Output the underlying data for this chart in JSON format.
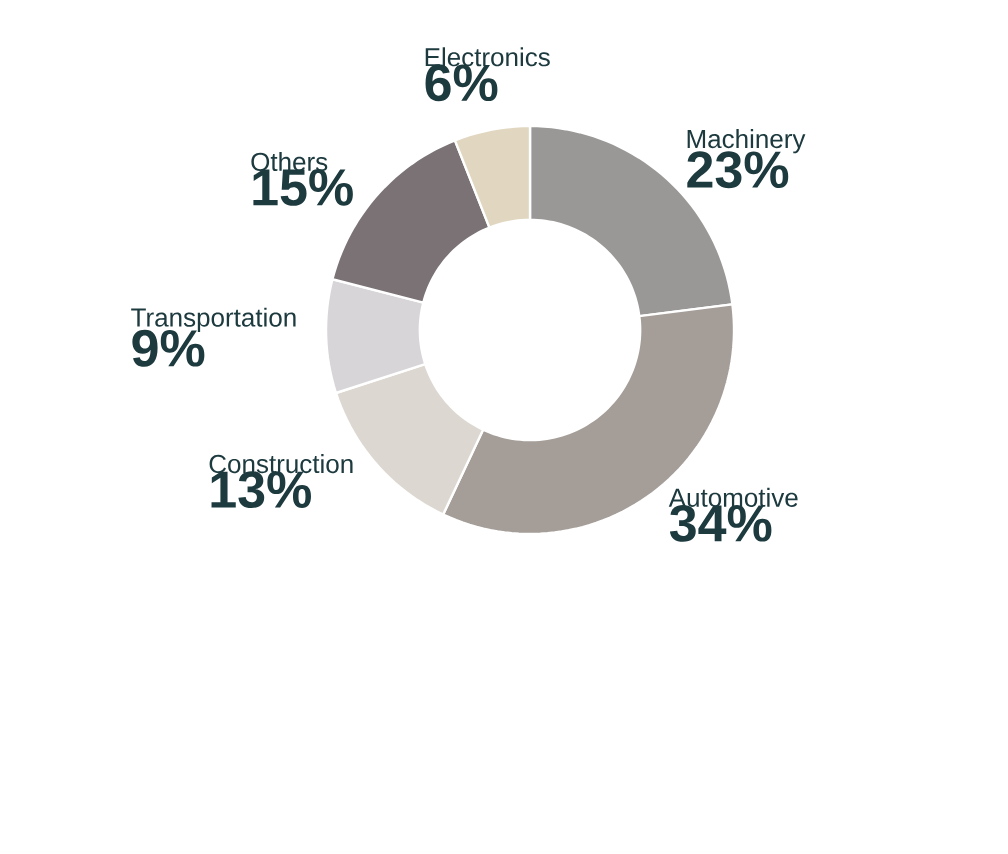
{
  "chart_data": {
    "type": "donut",
    "categories": [
      "Machinery",
      "Automotive",
      "Construction",
      "Transportation",
      "Others",
      "Electronics"
    ],
    "values": [
      23,
      34,
      13,
      9,
      15,
      6
    ],
    "value_labels": [
      "23%",
      "34%",
      "13%",
      "9%",
      "15%",
      "6%"
    ],
    "colors": [
      "#9a9897",
      "#a49d98",
      "#dcd8d1",
      "#d8d5d8",
      "#7a7275",
      "#e1d7c1"
    ]
  }
}
